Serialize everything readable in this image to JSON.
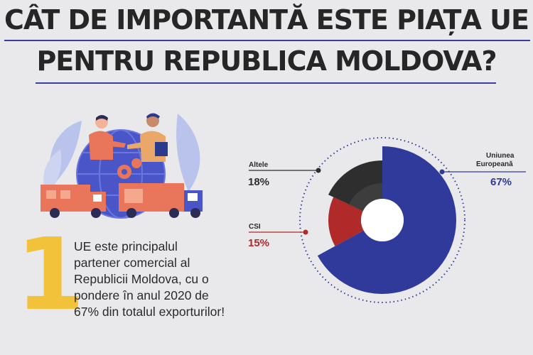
{
  "title": {
    "line1": "CÂT DE IMPORTANTĂ ESTE PIAȚA UE",
    "line2": "PENTRU REPUBLICA MOLDOVA?"
  },
  "big_number": "1",
  "description": [
    "UE este principalul",
    "partener  comercial al",
    "Republicii Moldova, cu o",
    "pondere în anul 2020 de",
    "67% din totalul exporturilor!"
  ],
  "chart_data": {
    "type": "pie",
    "title": "",
    "categories": [
      "Uniunea Europeană",
      "CSI",
      "Altele"
    ],
    "values": [
      67,
      15,
      18
    ],
    "value_labels": [
      "67%",
      "15%",
      "18%"
    ],
    "colors": {
      "Uniunea Europeană": "#2f3a9a",
      "CSI": "#b02a2a",
      "Altele": "#2e2e2e"
    },
    "legend": "labels beside the chart with connector lines"
  },
  "labels": {
    "eu": {
      "name_line1": "Uniunea",
      "name_line2": "Europeană",
      "value": "67%"
    },
    "csi": {
      "name": "CSI",
      "value": "15%"
    },
    "other": {
      "name": "Altele",
      "value": "18%"
    }
  },
  "colors": {
    "accent_yellow": "#f2c23a",
    "eu_blue": "#2f3a9a",
    "csi_red": "#b02a2a",
    "other_dark": "#2e2e2e",
    "title_rule": "#3a3f9e"
  },
  "illustration": "handshake-trade-illustration"
}
